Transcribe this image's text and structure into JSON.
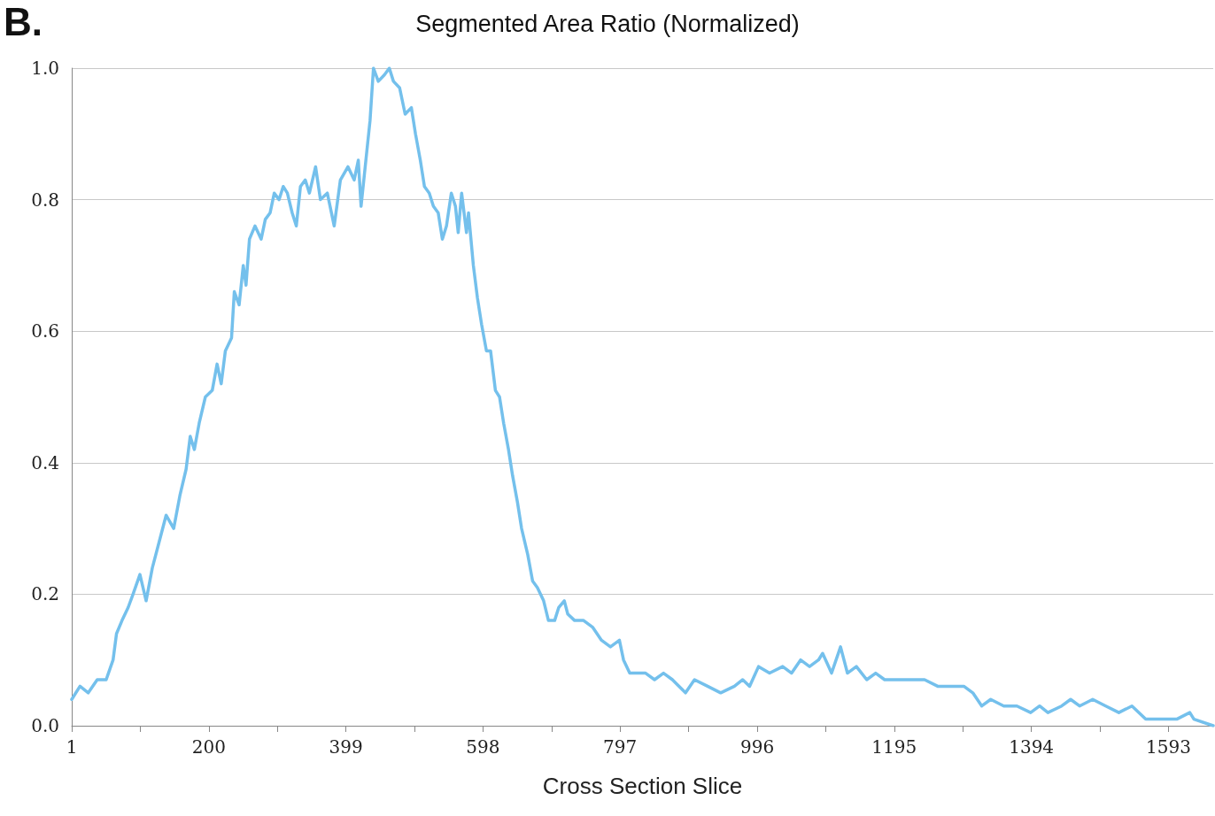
{
  "chart_data": {
    "type": "line",
    "title": "Segmented Area Ratio (Normalized)",
    "xlabel": "Cross Section Slice",
    "annotations": [
      "B."
    ],
    "x": [
      1,
      13,
      25,
      38,
      51,
      61,
      66,
      74,
      83,
      90,
      100,
      109,
      118,
      128,
      138,
      149,
      158,
      167,
      173,
      179,
      186,
      195,
      205,
      212,
      218,
      224,
      233,
      237,
      244,
      250,
      254,
      259,
      267,
      276,
      282,
      289,
      295,
      302,
      308,
      314,
      321,
      327,
      333,
      340,
      346,
      355,
      362,
      372,
      382,
      391,
      402,
      411,
      417,
      421,
      426,
      434,
      439,
      446,
      455,
      462,
      468,
      477,
      485,
      494,
      500,
      507,
      513,
      520,
      526,
      533,
      539,
      545,
      552,
      558,
      562,
      567,
      574,
      577,
      584,
      590,
      596,
      603,
      609,
      616,
      622,
      628,
      635,
      641,
      648,
      654,
      663,
      670,
      677,
      686,
      693,
      702,
      708,
      716,
      721,
      731,
      744,
      757,
      770,
      783,
      796,
      802,
      811,
      821,
      834,
      847,
      860,
      873,
      892,
      905,
      924,
      943,
      963,
      975,
      985,
      998,
      1014,
      1033,
      1046,
      1059,
      1072,
      1085,
      1091,
      1104,
      1117,
      1127,
      1140,
      1155,
      1168,
      1181,
      1200,
      1219,
      1239,
      1258,
      1277,
      1296,
      1309,
      1322,
      1335,
      1354,
      1373,
      1393,
      1406,
      1418,
      1438,
      1451,
      1464,
      1483,
      1502,
      1521,
      1540,
      1560,
      1579,
      1605,
      1624,
      1630,
      1658
    ],
    "series": [
      {
        "color": "#74c0ec",
        "values": [
          0.04,
          0.06,
          0.05,
          0.07,
          0.07,
          0.1,
          0.14,
          0.16,
          0.18,
          0.2,
          0.23,
          0.19,
          0.24,
          0.28,
          0.32,
          0.3,
          0.35,
          0.39,
          0.44,
          0.42,
          0.46,
          0.5,
          0.51,
          0.55,
          0.52,
          0.57,
          0.59,
          0.66,
          0.64,
          0.7,
          0.67,
          0.74,
          0.76,
          0.74,
          0.77,
          0.78,
          0.81,
          0.8,
          0.82,
          0.81,
          0.78,
          0.76,
          0.82,
          0.83,
          0.81,
          0.85,
          0.8,
          0.81,
          0.76,
          0.83,
          0.85,
          0.83,
          0.86,
          0.79,
          0.84,
          0.92,
          1.0,
          0.98,
          0.99,
          1.0,
          0.98,
          0.97,
          0.93,
          0.94,
          0.9,
          0.86,
          0.82,
          0.81,
          0.79,
          0.78,
          0.74,
          0.76,
          0.81,
          0.79,
          0.75,
          0.81,
          0.75,
          0.78,
          0.7,
          0.65,
          0.61,
          0.57,
          0.57,
          0.51,
          0.5,
          0.46,
          0.42,
          0.38,
          0.34,
          0.3,
          0.26,
          0.22,
          0.21,
          0.19,
          0.16,
          0.16,
          0.18,
          0.19,
          0.17,
          0.16,
          0.16,
          0.15,
          0.13,
          0.12,
          0.13,
          0.1,
          0.08,
          0.08,
          0.08,
          0.07,
          0.08,
          0.07,
          0.05,
          0.07,
          0.06,
          0.05,
          0.06,
          0.07,
          0.06,
          0.09,
          0.08,
          0.09,
          0.08,
          0.1,
          0.09,
          0.1,
          0.11,
          0.08,
          0.12,
          0.08,
          0.09,
          0.07,
          0.08,
          0.07,
          0.07,
          0.07,
          0.07,
          0.06,
          0.06,
          0.06,
          0.05,
          0.03,
          0.04,
          0.03,
          0.03,
          0.02,
          0.03,
          0.02,
          0.03,
          0.04,
          0.03,
          0.04,
          0.03,
          0.02,
          0.03,
          0.01,
          0.01,
          0.01,
          0.02,
          0.01,
          0.0
        ]
      }
    ],
    "xlim": [
      1,
      1658
    ],
    "xticks": [
      1,
      {
        "value": 100.5,
        "label": null
      },
      200,
      {
        "value": 299.5,
        "label": null
      },
      399,
      {
        "value": 498.5,
        "label": null
      },
      598,
      {
        "value": 697.5,
        "label": null
      },
      797,
      {
        "value": 896.5,
        "label": null
      },
      996,
      {
        "value": 1095.5,
        "label": null
      },
      1195,
      {
        "value": 1294.5,
        "label": null
      },
      1394,
      {
        "value": 1493.5,
        "label": null
      },
      1593
    ],
    "ylim": [
      0,
      1
    ],
    "yticks": [
      {
        "value": 0,
        "label": "0.0"
      },
      {
        "value": 0.2,
        "label": "0.2"
      },
      {
        "value": 0.4,
        "label": "0.4"
      },
      {
        "value": 0.6,
        "label": "0.6"
      },
      {
        "value": 0.8,
        "label": "0.8"
      },
      {
        "value": 1,
        "label": "1.0"
      }
    ],
    "grid": "y",
    "marker": "none",
    "line_style": "solid"
  }
}
